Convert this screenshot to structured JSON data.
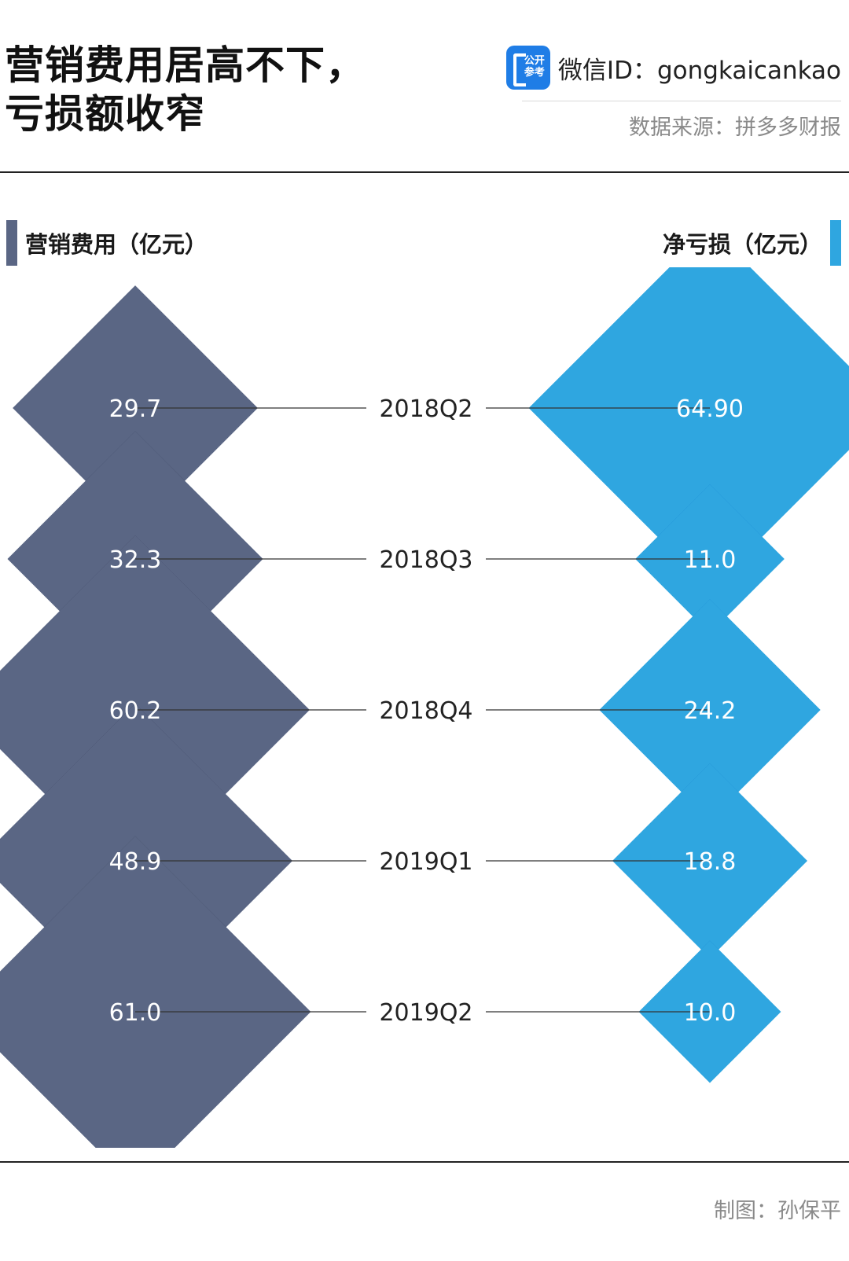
{
  "header": {
    "title_line1": "营销费用居高不下，",
    "title_line2": "亏损额收窄",
    "logo_text": "公开参考",
    "wechat_id": "微信ID：gongkaicankao",
    "source": "数据来源：拼多多财报"
  },
  "legend": {
    "left": "营销费用（亿元）",
    "right": "净亏损（亿元）"
  },
  "footer": {
    "credit": "制图：孙保平"
  },
  "chart_data": {
    "type": "diamond-comparison",
    "categories": [
      "2018Q2",
      "2018Q3",
      "2018Q4",
      "2019Q1",
      "2019Q2"
    ],
    "series": [
      {
        "name": "营销费用（亿元）",
        "values": [
          29.7,
          32.3,
          60.2,
          48.9,
          61.0
        ],
        "labels": [
          "29.7",
          "32.3",
          "60.2",
          "48.9",
          "61.0"
        ],
        "color": "#5a6684"
      },
      {
        "name": "净亏损（亿元）",
        "values": [
          64.9,
          11.0,
          24.2,
          18.8,
          10.0
        ],
        "labels": [
          "64.90",
          "11.0",
          "24.2",
          "18.8",
          "10.0"
        ],
        "color": "#2fa6e0"
      }
    ],
    "overlap_colors": {
      "left": "#242b47",
      "right": "#0a68c4"
    }
  }
}
